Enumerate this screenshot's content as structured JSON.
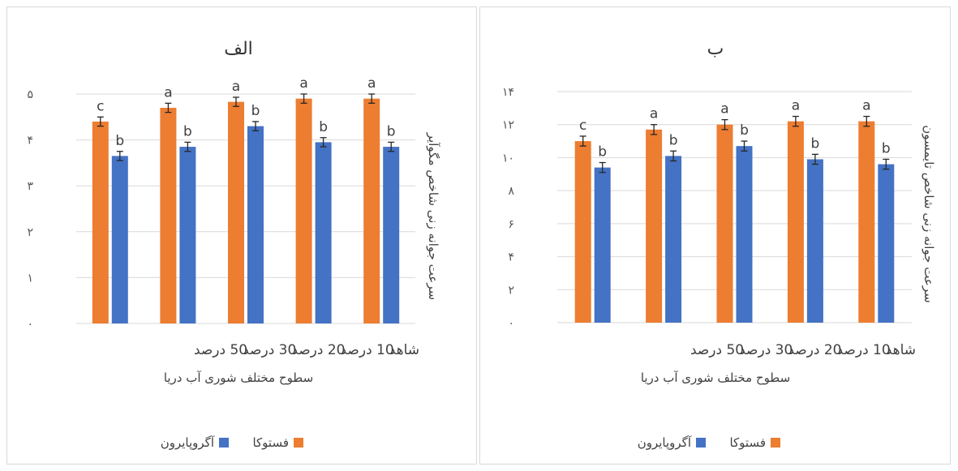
{
  "chart_data": [
    {
      "panel": "b",
      "type": "bar",
      "title": "ب",
      "xlabel": "سطوح مختلف شوری آب دریا",
      "ylabel": "سرعت جوانه زنی شاخص تایمسون",
      "ylim": [
        0,
        14
      ],
      "yticks": [
        0,
        2,
        4,
        6,
        8,
        10,
        12,
        14
      ],
      "ytick_labels": [
        "۰",
        "۲",
        "۴",
        "۶",
        "۸",
        "۱۰",
        "۱۲",
        "۱۴"
      ],
      "categories": [
        "شاهد",
        "10 درصد",
        "20 درصد",
        "30 درصد",
        "50 درصد"
      ],
      "category_order": "right-to-left",
      "grid": true,
      "legend_position": "bottom",
      "series": [
        {
          "name": "فستوکا",
          "color": "#ED7D31",
          "values": [
            12.2,
            12.2,
            12.0,
            11.7,
            11.0
          ],
          "errors": [
            0.3,
            0.3,
            0.3,
            0.3,
            0.3
          ],
          "labels": [
            "a",
            "a",
            "a",
            "a",
            "c"
          ]
        },
        {
          "name": "آگروپایرون",
          "color": "#4472C4",
          "values": [
            9.6,
            9.9,
            10.7,
            10.1,
            9.4
          ],
          "errors": [
            0.3,
            0.3,
            0.3,
            0.3,
            0.3
          ],
          "labels": [
            "b",
            "b",
            "b",
            "b",
            "b"
          ]
        }
      ]
    },
    {
      "panel": "a",
      "type": "bar",
      "title": "الف",
      "xlabel": "سطوح مختلف شوری آب دریا",
      "ylabel": "سرعت جوانه زنی شاخص مگوآیر",
      "ylim": [
        0,
        5
      ],
      "yticks": [
        0,
        1,
        2,
        3,
        4,
        5
      ],
      "ytick_labels": [
        "۰",
        "۱",
        "۲",
        "۳",
        "۴",
        "۵"
      ],
      "categories": [
        "شاهد",
        "10 درصد",
        "20 درصد",
        "30 درصد",
        "50 درصد"
      ],
      "category_order": "right-to-left",
      "grid": true,
      "legend_position": "bottom",
      "series": [
        {
          "name": "فستوکا",
          "color": "#ED7D31",
          "values": [
            4.9,
            4.9,
            4.83,
            4.7,
            4.4
          ],
          "errors": [
            0.1,
            0.1,
            0.1,
            0.1,
            0.1
          ],
          "labels": [
            "a",
            "a",
            "a",
            "a",
            "c"
          ]
        },
        {
          "name": "آگروپایرون",
          "color": "#4472C4",
          "values": [
            3.85,
            3.95,
            4.3,
            3.85,
            3.65
          ],
          "errors": [
            0.1,
            0.1,
            0.1,
            0.1,
            0.1
          ],
          "labels": [
            "b",
            "b",
            "b",
            "b",
            "b"
          ]
        }
      ]
    }
  ]
}
